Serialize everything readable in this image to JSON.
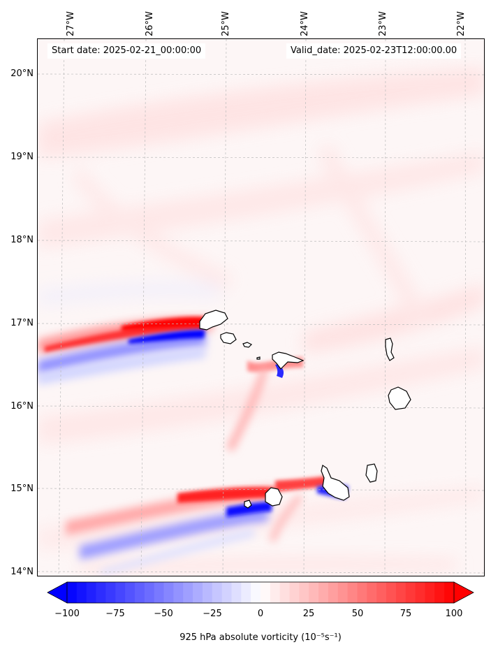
{
  "header": {
    "start_date": "Start date: 2025-02-21_00:00:00",
    "valid_date": "Valid_date: 2025-02-23T12:00:00.00"
  },
  "axes": {
    "lat_labels": [
      "20°N",
      "19°N",
      "18°N",
      "17°N",
      "16°N",
      "15°N",
      "14°N"
    ],
    "lon_labels": [
      "27°W",
      "26°W",
      "25°W",
      "24°W",
      "23°W",
      "22°W"
    ],
    "lat_range": [
      13.95,
      20.45
    ],
    "lon_range": [
      -27.3,
      -21.8
    ],
    "grid": "dashed"
  },
  "colorbar": {
    "ticks": [
      "−100",
      "−75",
      "−50",
      "−25",
      "0",
      "25",
      "50",
      "75",
      "100"
    ],
    "tick_values": [
      -100,
      -75,
      -50,
      -25,
      0,
      25,
      50,
      75,
      100
    ],
    "range": [
      -100,
      100
    ],
    "colormap": "bwr",
    "extend": "both",
    "label": "925 hPa absolute vorticity (10⁻⁵s⁻¹)"
  },
  "colors": {
    "neg": "#0000ff",
    "pos": "#ff0000",
    "background": "#fdf6f6"
  }
}
